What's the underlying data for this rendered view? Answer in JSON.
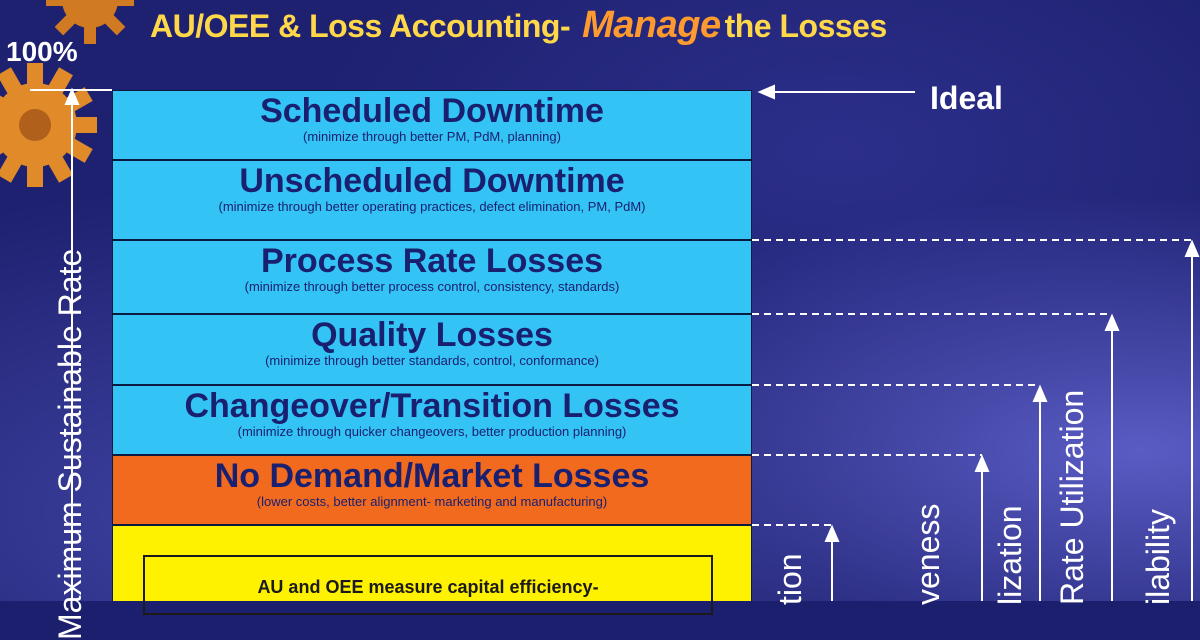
{
  "title": {
    "part1": "AU/OEE & Loss Accounting-",
    "accent": "Manage",
    "part2": "the Losses"
  },
  "labels": {
    "top_percent": "100%",
    "ideal": "Ideal",
    "left_axis": "Maximum Sustainable Rate"
  },
  "blocks": [
    {
      "title": "Scheduled Downtime",
      "subtitle": "(minimize through better PM, PdM, planning)"
    },
    {
      "title": "Unscheduled Downtime",
      "subtitle": "(minimize through better operating practices, defect elimination, PM, PdM)"
    },
    {
      "title": "Process Rate Losses",
      "subtitle": "(minimize through better process control, consistency, standards)"
    },
    {
      "title": "Quality  Losses",
      "subtitle": "(minimize through better standards,  control, conformance)"
    },
    {
      "title": "Changeover/Transition Losses",
      "subtitle": "(minimize through quicker changeovers, better production planning)"
    },
    {
      "title": "No Demand/Market Losses",
      "subtitle": "(lower costs, better alignment- marketing and manufacturing)"
    }
  ],
  "inner_box": "AU and OEE measure capital efficiency-",
  "vertical_labels": [
    "tion",
    "veness",
    "lization",
    "Rate Utilization",
    "ilability"
  ],
  "colors": {
    "background": "#1e2170",
    "blue_block": "#34c3f5",
    "orange_block": "#f26a1e",
    "yellow_block": "#fff200",
    "title_yellow": "#ffd84a",
    "title_orange": "#ff9a2e",
    "block_text": "#1a2070"
  },
  "icons": [
    "gear-icon"
  ]
}
